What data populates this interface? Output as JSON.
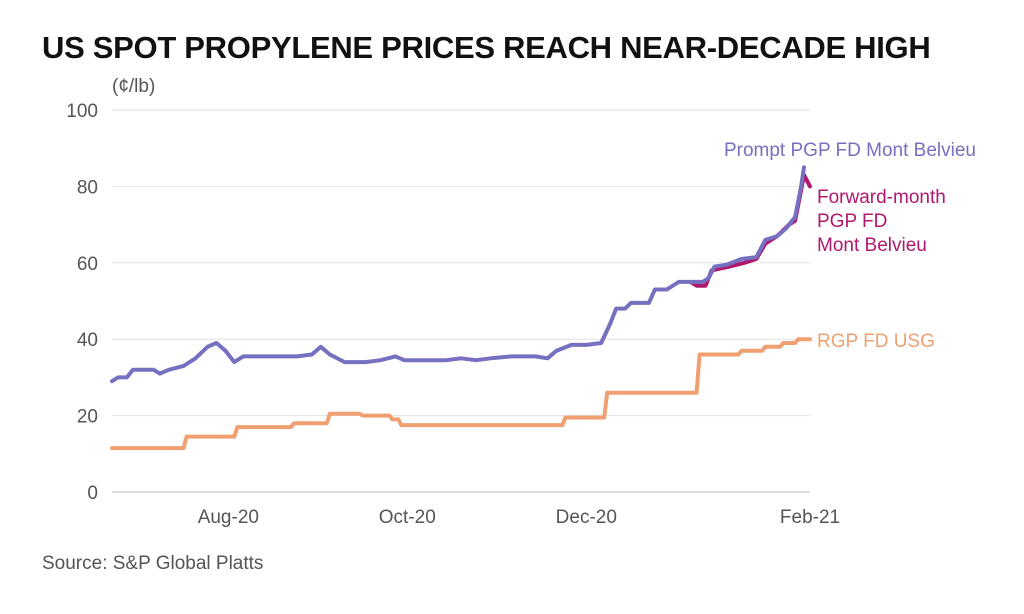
{
  "chart_data": {
    "type": "line",
    "title": "US SPOT PROPYLENE PRICES REACH NEAR-DECADE HIGH",
    "unit_label": "(¢/lb)",
    "source": "Source: S&P Global Platts",
    "ylim": [
      0,
      100
    ],
    "yticks": [
      0,
      20,
      40,
      60,
      80,
      100
    ],
    "xlim": [
      "2020-07-01",
      "2021-02-20"
    ],
    "xticks": [
      {
        "label": "Aug-20",
        "date": "2020-08-09"
      },
      {
        "label": "Oct-20",
        "date": "2020-10-08"
      },
      {
        "label": "Dec-20",
        "date": "2020-12-07"
      },
      {
        "label": "Feb-21",
        "date": "2021-02-20"
      }
    ],
    "grid": true,
    "series": [
      {
        "name": "RGP FD USG",
        "color": "#f0a070",
        "points": [
          [
            "2020-07-01",
            11.5
          ],
          [
            "2020-07-25",
            11.5
          ],
          [
            "2020-07-26",
            14.5
          ],
          [
            "2020-08-11",
            14.5
          ],
          [
            "2020-08-12",
            17
          ],
          [
            "2020-08-30",
            17
          ],
          [
            "2020-08-31",
            18
          ],
          [
            "2020-09-11",
            18
          ],
          [
            "2020-09-12",
            20.5
          ],
          [
            "2020-09-22",
            20.5
          ],
          [
            "2020-09-23",
            20
          ],
          [
            "2020-10-02",
            20
          ],
          [
            "2020-10-03",
            19
          ],
          [
            "2020-10-05",
            19
          ],
          [
            "2020-10-06",
            17.5
          ],
          [
            "2020-11-29",
            17.5
          ],
          [
            "2020-11-30",
            19.5
          ],
          [
            "2020-12-13",
            19.5
          ],
          [
            "2020-12-14",
            26
          ],
          [
            "2021-01-13",
            26
          ],
          [
            "2021-01-14",
            36
          ],
          [
            "2021-01-27",
            36
          ],
          [
            "2021-01-28",
            37
          ],
          [
            "2021-02-04",
            37
          ],
          [
            "2021-02-05",
            38
          ],
          [
            "2021-02-10",
            38
          ],
          [
            "2021-02-11",
            39
          ],
          [
            "2021-02-15",
            39
          ],
          [
            "2021-02-16",
            40
          ],
          [
            "2021-02-20",
            40
          ]
        ]
      },
      {
        "name": "Forward-month PGP FD Mont Belvieu",
        "color": "#b0186e",
        "points": [
          [
            "2021-01-11",
            55
          ],
          [
            "2021-01-13",
            54
          ],
          [
            "2021-01-16",
            54
          ],
          [
            "2021-01-18",
            58
          ],
          [
            "2021-01-24",
            59
          ],
          [
            "2021-01-29",
            60
          ],
          [
            "2021-02-02",
            61
          ],
          [
            "2021-02-05",
            65
          ],
          [
            "2021-02-09",
            67
          ],
          [
            "2021-02-13",
            70
          ],
          [
            "2021-02-15",
            71
          ],
          [
            "2021-02-17",
            79
          ],
          [
            "2021-02-18",
            83
          ],
          [
            "2021-02-20",
            80
          ]
        ]
      },
      {
        "name": "Prompt PGP FD Mont Belvieu",
        "color": "#7570c0",
        "points": [
          [
            "2020-07-01",
            29
          ],
          [
            "2020-07-03",
            30
          ],
          [
            "2020-07-06",
            30
          ],
          [
            "2020-07-08",
            32
          ],
          [
            "2020-07-15",
            32
          ],
          [
            "2020-07-17",
            31
          ],
          [
            "2020-07-20",
            32
          ],
          [
            "2020-07-25",
            33
          ],
          [
            "2020-07-29",
            35
          ],
          [
            "2020-08-02",
            38
          ],
          [
            "2020-08-05",
            39
          ],
          [
            "2020-08-08",
            37
          ],
          [
            "2020-08-11",
            34
          ],
          [
            "2020-08-14",
            35.5
          ],
          [
            "2020-08-20",
            35.5
          ],
          [
            "2020-09-01",
            35.5
          ],
          [
            "2020-09-06",
            36
          ],
          [
            "2020-09-09",
            38
          ],
          [
            "2020-09-12",
            36
          ],
          [
            "2020-09-17",
            34
          ],
          [
            "2020-09-24",
            34
          ],
          [
            "2020-09-29",
            34.5
          ],
          [
            "2020-10-04",
            35.5
          ],
          [
            "2020-10-07",
            34.5
          ],
          [
            "2020-10-15",
            34.5
          ],
          [
            "2020-10-21",
            34.5
          ],
          [
            "2020-10-26",
            35
          ],
          [
            "2020-10-31",
            34.5
          ],
          [
            "2020-11-05",
            35
          ],
          [
            "2020-11-12",
            35.5
          ],
          [
            "2020-11-20",
            35.5
          ],
          [
            "2020-11-24",
            35
          ],
          [
            "2020-11-27",
            37
          ],
          [
            "2020-12-02",
            38.5
          ],
          [
            "2020-12-07",
            38.5
          ],
          [
            "2020-12-12",
            39
          ],
          [
            "2020-12-15",
            44
          ],
          [
            "2020-12-17",
            48
          ],
          [
            "2020-12-20",
            48
          ],
          [
            "2020-12-22",
            49.5
          ],
          [
            "2020-12-28",
            49.5
          ],
          [
            "2020-12-30",
            53
          ],
          [
            "2021-01-03",
            53
          ],
          [
            "2021-01-05",
            54
          ],
          [
            "2021-01-07",
            55
          ],
          [
            "2021-01-15",
            55
          ],
          [
            "2021-01-17",
            56
          ],
          [
            "2021-01-19",
            59
          ],
          [
            "2021-01-23",
            59.5
          ],
          [
            "2021-01-28",
            61
          ],
          [
            "2021-02-02",
            61.5
          ],
          [
            "2021-02-05",
            66
          ],
          [
            "2021-02-09",
            67
          ],
          [
            "2021-02-12",
            69
          ],
          [
            "2021-02-15",
            72
          ],
          [
            "2021-02-17",
            80
          ],
          [
            "2021-02-18",
            85
          ]
        ]
      }
    ],
    "series_labels": {
      "prompt": "Prompt PGP FD Mont Belvieu",
      "forward": [
        "Forward-month",
        "PGP FD",
        "Mont Belvieu"
      ],
      "rgp": "RGP FD USG"
    }
  }
}
